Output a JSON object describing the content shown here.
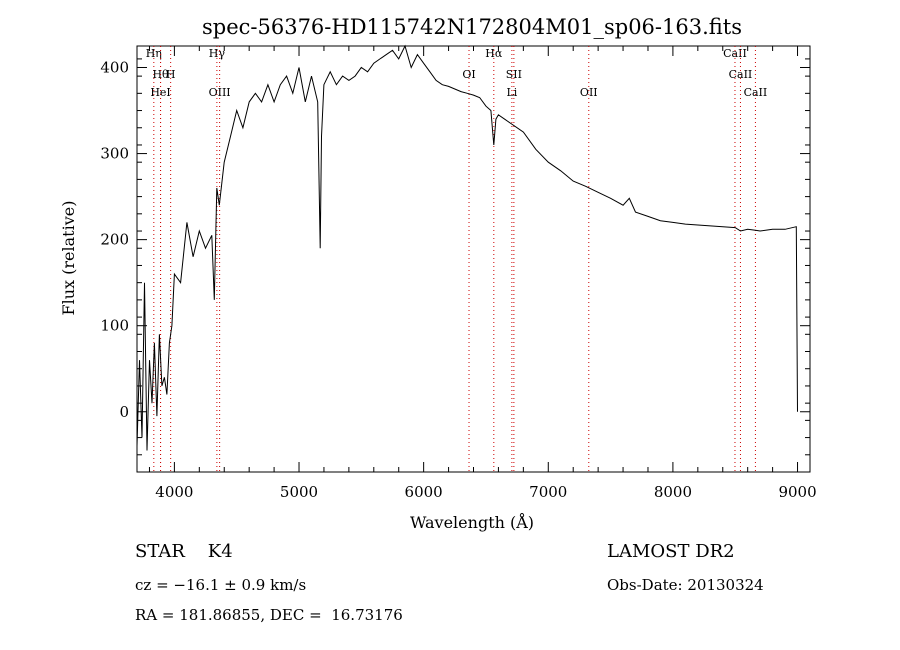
{
  "chart_data": {
    "type": "line",
    "title": "spec-56376-HD115742N172804M01_sp06-163.fits",
    "xlabel": "Wavelength (Å)",
    "ylabel": "Flux (relative)",
    "xlim": [
      3700,
      9100
    ],
    "ylim": [
      -70,
      425
    ],
    "xticks": [
      4000,
      5000,
      6000,
      7000,
      8000,
      9000
    ],
    "yticks": [
      0,
      100,
      200,
      300,
      400
    ],
    "grid": false,
    "series": [
      {
        "x": [
          3700,
          3720,
          3740,
          3760,
          3780,
          3800,
          3820,
          3840,
          3860,
          3880,
          3900,
          3920,
          3940,
          3960,
          3980,
          4000,
          4050,
          4100,
          4150,
          4200,
          4250,
          4300,
          4320,
          4340,
          4360,
          4400,
          4450,
          4500,
          4550,
          4600,
          4650,
          4700,
          4750,
          4800,
          4850,
          4900,
          4950,
          5000,
          5050,
          5100,
          5150,
          5170,
          5180,
          5200,
          5250,
          5300,
          5350,
          5400,
          5450,
          5500,
          5550,
          5600,
          5650,
          5700,
          5750,
          5800,
          5850,
          5900,
          5950,
          6000,
          6050,
          6100,
          6150,
          6200,
          6250,
          6300,
          6350,
          6400,
          6450,
          6500,
          6540,
          6563,
          6580,
          6600,
          6650,
          6700,
          6800,
          6900,
          7000,
          7100,
          7200,
          7300,
          7400,
          7500,
          7600,
          7650,
          7700,
          7800,
          7900,
          8000,
          8100,
          8200,
          8300,
          8400,
          8500,
          8542,
          8600,
          8662,
          8700,
          8800,
          8900,
          8990,
          9000
        ],
        "y": [
          -40,
          60,
          -30,
          150,
          -45,
          60,
          10,
          80,
          -5,
          90,
          30,
          40,
          20,
          80,
          100,
          160,
          150,
          220,
          180,
          210,
          190,
          205,
          130,
          260,
          240,
          290,
          320,
          350,
          330,
          360,
          370,
          360,
          380,
          360,
          380,
          390,
          370,
          400,
          360,
          390,
          360,
          190,
          320,
          380,
          395,
          380,
          390,
          385,
          390,
          400,
          395,
          405,
          410,
          415,
          420,
          410,
          425,
          400,
          415,
          405,
          395,
          385,
          380,
          378,
          375,
          372,
          370,
          368,
          365,
          355,
          350,
          310,
          340,
          345,
          340,
          335,
          325,
          305,
          290,
          280,
          268,
          262,
          255,
          248,
          240,
          248,
          232,
          227,
          222,
          220,
          218,
          217,
          216,
          215,
          214,
          210,
          212,
          211,
          210,
          212,
          212,
          215,
          0
        ]
      }
    ],
    "lines": [
      {
        "name": "Hη",
        "x": 3835
      },
      {
        "name": "Hθ",
        "x": 3889
      },
      {
        "name": "H",
        "x": 3970
      },
      {
        "name": "HeI",
        "x": 3889
      },
      {
        "name": "Hγ",
        "x": 4341
      },
      {
        "name": "OIII",
        "x": 4363
      },
      {
        "name": "OI",
        "x": 6364
      },
      {
        "name": "Hα",
        "x": 6563
      },
      {
        "name": "SII",
        "x": 6724
      },
      {
        "name": "Li",
        "x": 6708
      },
      {
        "name": "OII",
        "x": 7325
      },
      {
        "name": "CaII",
        "x": 8498
      },
      {
        "name": "CaII",
        "x": 8542
      },
      {
        "name": "CaII",
        "x": 8662
      }
    ]
  },
  "info": {
    "object": "STAR    K4",
    "survey": "LAMOST DR2",
    "cz": "cz = −16.1 ± 0.9 km/s",
    "obs_date": "Obs-Date: 20130324",
    "radec": "RA = 181.86855, DEC =  16.73176"
  },
  "colors": {
    "axis": "#000000",
    "line": "#000000",
    "marker": "#cc0000"
  }
}
